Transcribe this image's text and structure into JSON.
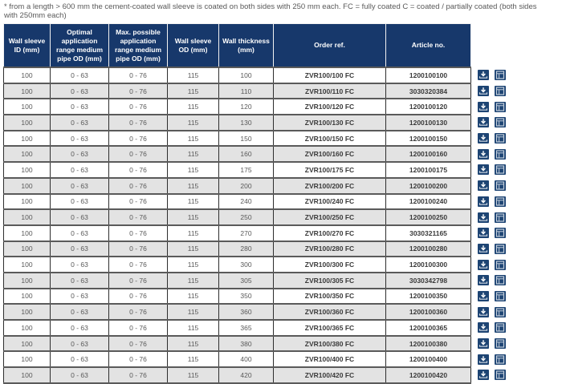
{
  "note": "* from a length > 600 mm the cement-coated wall sleeve is coated on both sides with 250 mm each. FC = fully coated C = coated / partially coated (both sides with 250mm each)",
  "colors": {
    "header_bg": "#17386b",
    "stripe": "#e3e3e3",
    "icon_bg": "#1d4473",
    "grid_line": "#2e2e2e"
  },
  "icons": {
    "row_action_1": "download-icon",
    "row_action_2": "table-icon"
  },
  "table": {
    "headers": [
      "Wall sleeve ID (mm)",
      "Optimal application range medium pipe OD (mm)",
      "Max. possible application range medium pipe OD (mm)",
      "Wall sleeve OD (mm)",
      "Wall thickness (mm)",
      "Order ref.",
      "Article no."
    ],
    "rows": [
      [
        "100",
        "0 - 63",
        "0 - 76",
        "115",
        "100",
        "ZVR100/100 FC",
        "1200100100"
      ],
      [
        "100",
        "0 - 63",
        "0 - 76",
        "115",
        "110",
        "ZVR100/110 FC",
        "3030320384"
      ],
      [
        "100",
        "0 - 63",
        "0 - 76",
        "115",
        "120",
        "ZVR100/120 FC",
        "1200100120"
      ],
      [
        "100",
        "0 - 63",
        "0 - 76",
        "115",
        "130",
        "ZVR100/130 FC",
        "1200100130"
      ],
      [
        "100",
        "0 - 63",
        "0 - 76",
        "115",
        "150",
        "ZVR100/150 FC",
        "1200100150"
      ],
      [
        "100",
        "0 - 63",
        "0 - 76",
        "115",
        "160",
        "ZVR100/160 FC",
        "1200100160"
      ],
      [
        "100",
        "0 - 63",
        "0 - 76",
        "115",
        "175",
        "ZVR100/175 FC",
        "1200100175"
      ],
      [
        "100",
        "0 - 63",
        "0 - 76",
        "115",
        "200",
        "ZVR100/200 FC",
        "1200100200"
      ],
      [
        "100",
        "0 - 63",
        "0 - 76",
        "115",
        "240",
        "ZVR100/240 FC",
        "1200100240"
      ],
      [
        "100",
        "0 - 63",
        "0 - 76",
        "115",
        "250",
        "ZVR100/250 FC",
        "1200100250"
      ],
      [
        "100",
        "0 - 63",
        "0 - 76",
        "115",
        "270",
        "ZVR100/270 FC",
        "3030321165"
      ],
      [
        "100",
        "0 - 63",
        "0 - 76",
        "115",
        "280",
        "ZVR100/280 FC",
        "1200100280"
      ],
      [
        "100",
        "0 - 63",
        "0 - 76",
        "115",
        "300",
        "ZVR100/300 FC",
        "1200100300"
      ],
      [
        "100",
        "0 - 63",
        "0 - 76",
        "115",
        "305",
        "ZVR100/305 FC",
        "3030342798"
      ],
      [
        "100",
        "0 - 63",
        "0 - 76",
        "115",
        "350",
        "ZVR100/350 FC",
        "1200100350"
      ],
      [
        "100",
        "0 - 63",
        "0 - 76",
        "115",
        "360",
        "ZVR100/360 FC",
        "1200100360"
      ],
      [
        "100",
        "0 - 63",
        "0 - 76",
        "115",
        "365",
        "ZVR100/365 FC",
        "1200100365"
      ],
      [
        "100",
        "0 - 63",
        "0 - 76",
        "115",
        "380",
        "ZVR100/380 FC",
        "1200100380"
      ],
      [
        "100",
        "0 - 63",
        "0 - 76",
        "115",
        "400",
        "ZVR100/400 FC",
        "1200100400"
      ],
      [
        "100",
        "0 - 63",
        "0 - 76",
        "115",
        "420",
        "ZVR100/420 FC",
        "1200100420"
      ]
    ],
    "cell_names": [
      "cell-wall-sleeve-id",
      "cell-optimal-range",
      "cell-max-range",
      "cell-wall-sleeve-od",
      "cell-wall-thickness",
      "cell-order-ref",
      "cell-article-no"
    ]
  }
}
